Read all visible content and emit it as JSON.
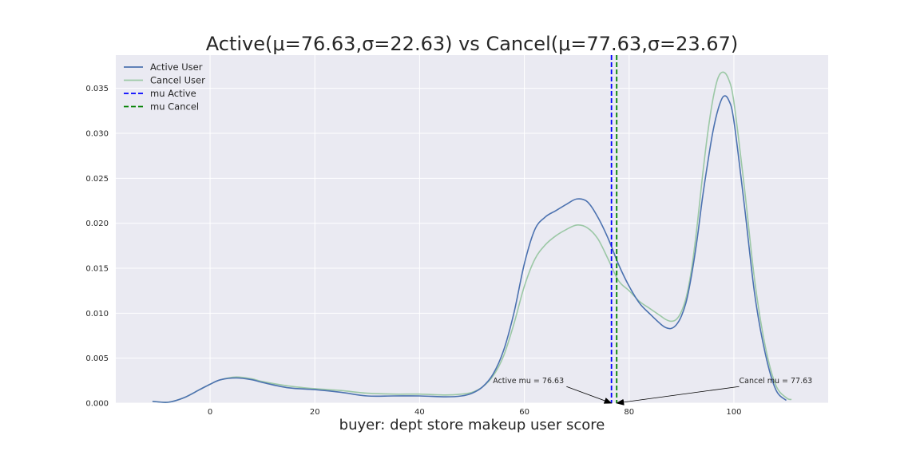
{
  "chart_data": {
    "type": "line",
    "title": "Active(μ=76.63,σ=22.63) vs Cancel(μ=77.63,σ=23.67)",
    "xlabel": "buyer: dept store makeup user score",
    "ylabel": "",
    "xlim": [
      -18,
      118
    ],
    "ylim": [
      0,
      0.0387
    ],
    "x_ticks": [
      0,
      20,
      40,
      60,
      80,
      100
    ],
    "y_ticks": [
      0.0,
      0.005,
      0.01,
      0.015,
      0.02,
      0.025,
      0.03,
      0.035
    ],
    "x_tick_labels": [
      "0",
      "20",
      "40",
      "60",
      "80",
      "100"
    ],
    "y_tick_labels": [
      "0.000",
      "0.005",
      "0.010",
      "0.015",
      "0.020",
      "0.025",
      "0.030",
      "0.035"
    ],
    "grid": true,
    "legend_position": "top-left",
    "background": "#eaeaf2",
    "series": [
      {
        "name": "Active User",
        "color": "#4c72b0",
        "x": [
          -11,
          -8,
          -5,
          -2,
          0,
          2,
          5,
          8,
          10,
          15,
          20,
          25,
          30,
          35,
          40,
          45,
          48,
          50,
          52,
          54,
          56,
          58,
          60,
          62,
          64,
          66,
          68,
          70,
          72,
          74,
          76,
          78,
          80,
          82,
          84,
          86,
          87,
          88,
          89,
          90,
          91,
          92,
          93,
          94,
          95,
          96,
          97,
          98,
          99,
          100,
          102,
          104,
          106,
          108,
          110
        ],
        "y": [
          0.0002,
          0.0001,
          0.0006,
          0.0015,
          0.0021,
          0.0026,
          0.0028,
          0.0026,
          0.0023,
          0.0017,
          0.0015,
          0.0012,
          0.0008,
          0.0008,
          0.0008,
          0.0007,
          0.0008,
          0.0011,
          0.0018,
          0.0032,
          0.0058,
          0.01,
          0.0155,
          0.0193,
          0.0207,
          0.0214,
          0.0221,
          0.0227,
          0.0224,
          0.0207,
          0.0183,
          0.0154,
          0.013,
          0.0111,
          0.0099,
          0.0088,
          0.0084,
          0.0083,
          0.0087,
          0.0097,
          0.0115,
          0.0145,
          0.0183,
          0.0228,
          0.0267,
          0.0302,
          0.0327,
          0.0341,
          0.0337,
          0.0314,
          0.022,
          0.012,
          0.0055,
          0.0015,
          0.0003
        ]
      },
      {
        "name": "Cancel User",
        "color": "#9cc8a6",
        "x": [
          -11,
          -8,
          -5,
          -2,
          0,
          2,
          5,
          8,
          10,
          15,
          20,
          25,
          30,
          35,
          40,
          45,
          48,
          50,
          52,
          54,
          56,
          58,
          60,
          62,
          64,
          66,
          68,
          70,
          72,
          74,
          76,
          78,
          80,
          82,
          84,
          86,
          87,
          88,
          89,
          90,
          91,
          92,
          93,
          94,
          95,
          96,
          97,
          98,
          99,
          100,
          102,
          104,
          106,
          108,
          110,
          111
        ],
        "y": [
          0.0002,
          0.0001,
          0.0006,
          0.0015,
          0.0021,
          0.0026,
          0.0029,
          0.0027,
          0.0024,
          0.0019,
          0.0016,
          0.0014,
          0.0011,
          0.001,
          0.001,
          0.0009,
          0.001,
          0.0012,
          0.0018,
          0.003,
          0.0052,
          0.0088,
          0.013,
          0.016,
          0.0176,
          0.0186,
          0.0193,
          0.0198,
          0.0195,
          0.0183,
          0.016,
          0.0136,
          0.0125,
          0.0113,
          0.0105,
          0.0097,
          0.0093,
          0.0091,
          0.0093,
          0.0102,
          0.012,
          0.0152,
          0.0198,
          0.0252,
          0.03,
          0.0338,
          0.0362,
          0.0368,
          0.036,
          0.0335,
          0.024,
          0.0135,
          0.0063,
          0.002,
          0.0006,
          0.0004
        ]
      },
      {
        "name": "mu Active",
        "color": "#0000ff",
        "style": "dashed",
        "vline_x": 76.63
      },
      {
        "name": "mu Cancel",
        "color": "#008000",
        "style": "dashed",
        "vline_x": 77.63
      }
    ],
    "annotations": [
      {
        "text": "Active mu = 76.63",
        "point": [
          76.63,
          0.0
        ],
        "text_x": 54,
        "text_y": 0.0022,
        "align": "start"
      },
      {
        "text": "Cancel mu = 77.63",
        "point": [
          77.63,
          0.0
        ],
        "text_x": 101,
        "text_y": 0.0022,
        "align": "start"
      }
    ]
  }
}
